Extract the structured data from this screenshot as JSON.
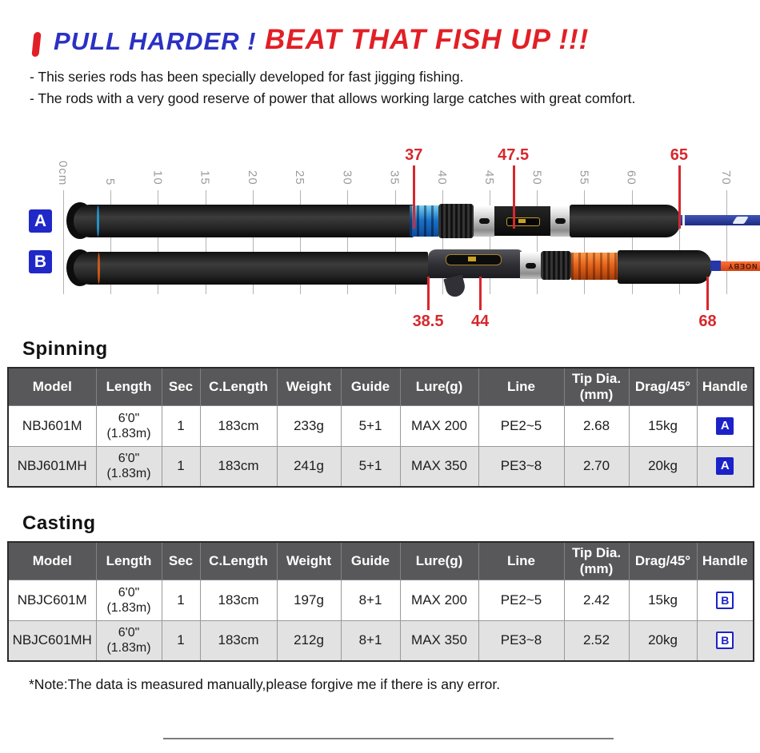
{
  "header": {
    "title_blue": "PULL HARDER !",
    "title_red": "BEAT THAT FISH UP !!!",
    "bullets": [
      "- This series rods has been specially developed for fast jigging fishing.",
      "- The rods with a very good reserve of power that allows working large catches with great comfort."
    ]
  },
  "colors": {
    "title_blue": "#2b31c3",
    "title_red": "#e21f26",
    "marker_red": "#d7282d",
    "badge_blue": "#1b22c8",
    "table_header_bg": "#58585a",
    "table_alt_row_bg": "#e2e2e2",
    "rod_a_blank": "#2c3da8",
    "rod_b_blank": "#e65524"
  },
  "diagram": {
    "ruler": {
      "ticks": [
        {
          "label": "0cm",
          "cm": 0
        },
        {
          "label": "5",
          "cm": 5
        },
        {
          "label": "10",
          "cm": 10
        },
        {
          "label": "15",
          "cm": 15
        },
        {
          "label": "20",
          "cm": 20
        },
        {
          "label": "25",
          "cm": 25
        },
        {
          "label": "30",
          "cm": 30
        },
        {
          "label": "35",
          "cm": 35
        },
        {
          "label": "40",
          "cm": 40
        },
        {
          "label": "45",
          "cm": 45
        },
        {
          "label": "50",
          "cm": 50
        },
        {
          "label": "55",
          "cm": 55
        },
        {
          "label": "60",
          "cm": 60
        },
        {
          "label": "",
          "cm": 65
        },
        {
          "label": "70",
          "cm": 70
        }
      ]
    },
    "markers_top": [
      {
        "label": "37",
        "cm": 37
      },
      {
        "label": "47.5",
        "cm": 47.5
      },
      {
        "label": "65",
        "cm": 65
      }
    ],
    "markers_bottom": [
      {
        "label": "38.5",
        "cm": 38.5
      },
      {
        "label": "44",
        "cm": 44
      },
      {
        "label": "68",
        "cm": 68
      }
    ],
    "rod_a": {
      "badge": "A"
    },
    "rod_b": {
      "badge": "B",
      "blank_text": "NOEBY"
    }
  },
  "tables": {
    "columns": [
      {
        "label": "Model"
      },
      {
        "label": "Length"
      },
      {
        "label": "Sec"
      },
      {
        "label": "C.Length"
      },
      {
        "label": "Weight"
      },
      {
        "label": "Guide"
      },
      {
        "label": "Lure(g)"
      },
      {
        "label": "Line"
      },
      {
        "label": "Tip Dia.",
        "label2": "(mm)"
      },
      {
        "label": "Drag/45°"
      },
      {
        "label": "Handle"
      }
    ],
    "spinning": {
      "title": "Spinning",
      "rows": [
        {
          "model": "NBJ601M",
          "length_ft": "6'0\"",
          "length_m": "(1.83m)",
          "sec": "1",
          "c_length": "183cm",
          "weight": "233g",
          "guide": "5+1",
          "lure": "MAX 200",
          "line": "PE2~5",
          "tip_dia": "2.68",
          "drag": "15kg",
          "handle": "A"
        },
        {
          "model": "NBJ601MH",
          "length_ft": "6'0\"",
          "length_m": "(1.83m)",
          "sec": "1",
          "c_length": "183cm",
          "weight": "241g",
          "guide": "5+1",
          "lure": "MAX 350",
          "line": "PE3~8",
          "tip_dia": "2.70",
          "drag": "20kg",
          "handle": "A"
        }
      ]
    },
    "casting": {
      "title": "Casting",
      "rows": [
        {
          "model": "NBJC601M",
          "length_ft": "6'0\"",
          "length_m": "(1.83m)",
          "sec": "1",
          "c_length": "183cm",
          "weight": "197g",
          "guide": "8+1",
          "lure": "MAX 200",
          "line": "PE2~5",
          "tip_dia": "2.42",
          "drag": "15kg",
          "handle": "B"
        },
        {
          "model": "NBJC601MH",
          "length_ft": "6'0\"",
          "length_m": "(1.83m)",
          "sec": "1",
          "c_length": "183cm",
          "weight": "212g",
          "guide": "8+1",
          "lure": "MAX 350",
          "line": "PE3~8",
          "tip_dia": "2.52",
          "drag": "20kg",
          "handle": "B"
        }
      ]
    }
  },
  "note": "*Note:The data is measured manually,please forgive me if there is any error."
}
